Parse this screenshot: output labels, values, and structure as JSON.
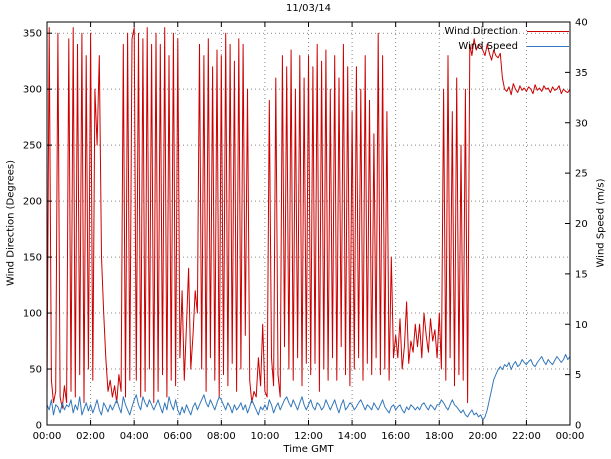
{
  "chart_data": {
    "type": "line",
    "title": "11/03/14",
    "xlabel": "Time GMT",
    "ylabel_left": "Wind Direction (Degrees)",
    "ylabel_right": "Wind Speed (m/s)",
    "grid": true,
    "legend_position": "top-right-inside",
    "x_start_hour": 0,
    "x_step_hours": 0.1,
    "x_tick_hours": [
      0,
      2,
      4,
      6,
      8,
      10,
      12,
      14,
      16,
      18,
      20,
      22,
      24
    ],
    "x_ticks": [
      "00:00",
      "02:00",
      "04:00",
      "06:00",
      "08:00",
      "10:00",
      "12:00",
      "14:00",
      "16:00",
      "18:00",
      "20:00",
      "22:00",
      "00:00"
    ],
    "ylim_left": [
      0,
      360
    ],
    "yticks_left": [
      0,
      50,
      100,
      150,
      200,
      250,
      300,
      350
    ],
    "ylim_right": [
      0,
      40
    ],
    "yticks_right": [
      0,
      5,
      10,
      15,
      20,
      25,
      30,
      35,
      40
    ],
    "series": [
      {
        "name": "Wind Direction",
        "axis": "left",
        "color": "#cc0000",
        "values": [
          25,
          355,
          40,
          20,
          30,
          350,
          25,
          15,
          35,
          20,
          345,
          30,
          355,
          25,
          340,
          45,
          350,
          20,
          330,
          50,
          350,
          40,
          300,
          250,
          330,
          150,
          100,
          60,
          30,
          40,
          25,
          35,
          20,
          45,
          30,
          340,
          25,
          350,
          40,
          345,
          355,
          40,
          350,
          25,
          345,
          30,
          355,
          50,
          340,
          20,
          350,
          30,
          340,
          45,
          355,
          25,
          330,
          40,
          350,
          35,
          345,
          60,
          120,
          40,
          90,
          140,
          50,
          80,
          120,
          100,
          340,
          50,
          330,
          30,
          345,
          60,
          320,
          40,
          335,
          25,
          330,
          45,
          350,
          35,
          340,
          55,
          325,
          30,
          345,
          50,
          340,
          80,
          300,
          40,
          20,
          30,
          25,
          60,
          35,
          90,
          30,
          25,
          290,
          60,
          35,
          310,
          45,
          25,
          330,
          70,
          320,
          50,
          335,
          40,
          300,
          60,
          330,
          35,
          310,
          55,
          330,
          45,
          320,
          55,
          340,
          30,
          325,
          50,
          335,
          40,
          300,
          60,
          330,
          40,
          310,
          70,
          340,
          45,
          320,
          35,
          280,
          50,
          320,
          60,
          300,
          40,
          330,
          55,
          290,
          45,
          260,
          60,
          350,
          45,
          330,
          50,
          280,
          40,
          150,
          60,
          80,
          60,
          95,
          50,
          70,
          110,
          55,
          75,
          65,
          90,
          70,
          90,
          60,
          100,
          80,
          65,
          95,
          75,
          85,
          60,
          100,
          50,
          300,
          40,
          330,
          60,
          280,
          35,
          310,
          45,
          250,
          40,
          300,
          20,
          340,
          330,
          345,
          335,
          340,
          338,
          335,
          330,
          340,
          332,
          326,
          335,
          330,
          328,
          332,
          310,
          300,
          298,
          302,
          295,
          305,
          300,
          297,
          303,
          299,
          301,
          298,
          302,
          300,
          296,
          304,
          299,
          301,
          298,
          303,
          300,
          301,
          297,
          302,
          299,
          300,
          303,
          296,
          300,
          298,
          297,
          300
        ]
      },
      {
        "name": "Wind Speed",
        "axis": "right",
        "color": "#3377bb",
        "values": [
          2,
          1.5,
          2.5,
          1,
          2,
          1.8,
          1.2,
          2.2,
          1.5,
          2,
          1.8,
          2.5,
          1.2,
          2,
          1.5,
          2.8,
          1,
          1.6,
          2.2,
          1.4,
          2,
          1.2,
          1.8,
          2.5,
          1.5,
          1,
          2.2,
          1.8,
          1.3,
          2,
          1.5,
          2,
          2.5,
          1.8,
          1.2,
          2.8,
          2,
          1.5,
          1,
          1.8,
          2.5,
          3,
          2,
          1.5,
          2.8,
          2.2,
          1.8,
          2.5,
          2,
          1.5,
          2,
          2.5,
          1.8,
          1.2,
          2.2,
          1.5,
          2.8,
          2,
          1.5,
          2.5,
          1.5,
          1,
          1.8,
          1.2,
          2,
          1.5,
          1,
          1.8,
          2.2,
          1.5,
          2,
          2.5,
          3,
          2.2,
          1.8,
          2.5,
          2,
          1.5,
          2.2,
          2.8,
          2.5,
          2,
          1.5,
          2.2,
          1.8,
          1.2,
          2,
          1.5,
          1.8,
          2.2,
          1.5,
          2,
          1.2,
          1.8,
          2.5,
          2,
          1.5,
          1,
          1.8,
          1.5,
          2,
          1.5,
          2.5,
          2,
          1.2,
          1.8,
          2.2,
          1.5,
          2,
          2.5,
          2.8,
          2.2,
          1.8,
          2.5,
          2,
          1.5,
          2.2,
          2.8,
          2,
          1.5,
          2,
          2.5,
          1.8,
          1.5,
          2.2,
          2,
          1.5,
          1.8,
          2.5,
          2,
          1.5,
          2,
          2.5,
          1.8,
          1.2,
          2,
          2.5,
          1.5,
          1.8,
          2.2,
          2,
          1.5,
          1.8,
          2.2,
          2.5,
          2,
          1.5,
          2,
          1.8,
          1.5,
          2.2,
          1.8,
          1.5,
          2,
          2.5,
          1.8,
          1.5,
          1.2,
          1.8,
          2,
          1.5,
          1.8,
          2,
          1.5,
          1.2,
          1.8,
          1.5,
          2,
          1.8,
          1.5,
          1.8,
          1.5,
          2,
          2.2,
          1.8,
          1.5,
          2,
          1.8,
          1.5,
          2,
          2,
          2.5,
          2.2,
          1.8,
          1.5,
          2,
          2.5,
          2,
          1.8,
          1.5,
          1.2,
          1.5,
          1,
          0.8,
          1.2,
          1.5,
          1,
          1.2,
          0.8,
          1,
          0.5,
          0.8,
          1.5,
          2.5,
          3.5,
          4.5,
          5,
          5.5,
          5.8,
          5.5,
          6,
          5.8,
          6.2,
          5.5,
          6,
          6.3,
          5.8,
          6,
          6.5,
          6.2,
          6,
          6.3,
          6.5,
          6,
          5.8,
          6.2,
          6.5,
          6.8,
          6.3,
          6,
          6.5,
          6.2,
          6,
          6.4,
          6.8,
          6.5,
          6.2,
          6.5,
          7,
          6.5,
          6.8
        ]
      }
    ]
  }
}
